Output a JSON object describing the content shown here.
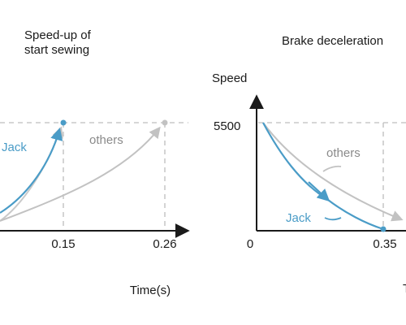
{
  "chart_data": [
    {
      "type": "line",
      "title_lines": [
        "Speed-up of",
        "start sewing"
      ],
      "xlabel": "Time(s)",
      "ylabel": "",
      "x_ticks": [
        "0.15",
        "0.26"
      ],
      "series": [
        {
          "name": "Jack",
          "color": "#4a9cc7",
          "x": [
            0,
            0.15
          ],
          "y": [
            0,
            5500
          ]
        },
        {
          "name": "others",
          "color": "#c2c2c2",
          "x": [
            0,
            0.26
          ],
          "y": [
            0,
            5500
          ]
        }
      ],
      "grid": false
    },
    {
      "type": "line",
      "title": "Brake deceleration",
      "ylabel": "Speed",
      "xlabel": "T",
      "x_ticks": [
        "0",
        "0.35"
      ],
      "y_ticks": [
        "5500"
      ],
      "series": [
        {
          "name": "Jack",
          "color": "#4a9cc7",
          "x": [
            0,
            0.35
          ],
          "y": [
            5500,
            0
          ]
        },
        {
          "name": "others",
          "color": "#c2c2c2",
          "y_start": 5500,
          "y_end": 0
        }
      ],
      "grid": false
    }
  ],
  "colors": {
    "jack": "#4a9cc7",
    "others": "#c2c2c2",
    "axis": "#1a1a1a",
    "guide": "#bdbdbd"
  }
}
